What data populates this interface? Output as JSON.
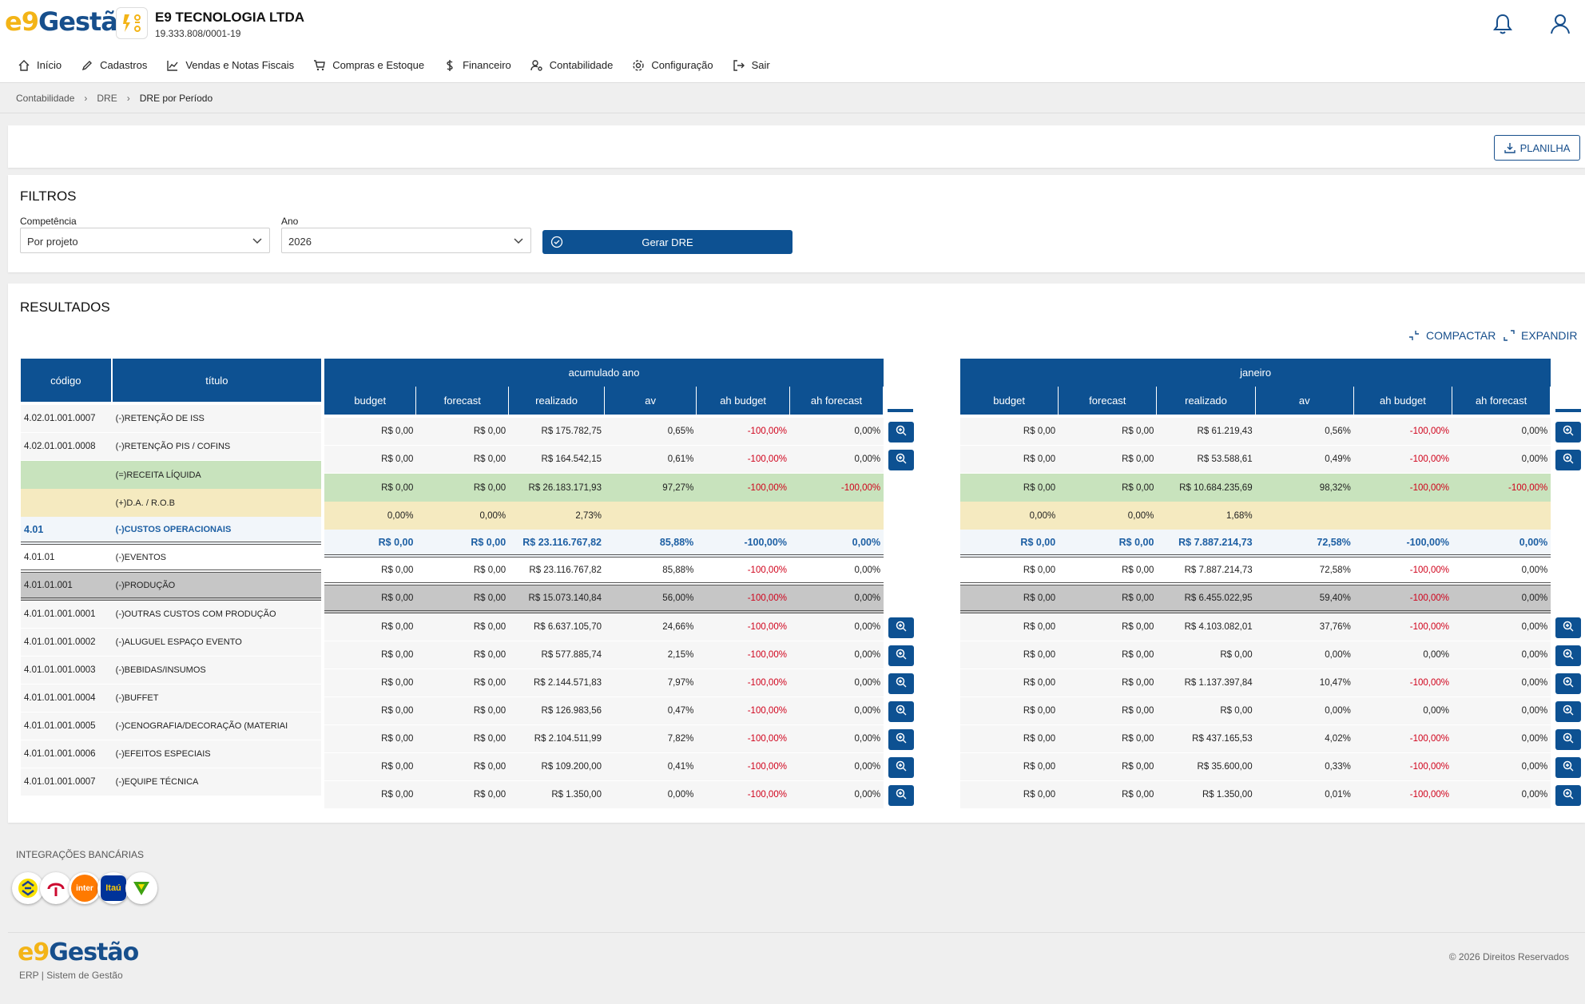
{
  "header": {
    "logo_prefix": "e9",
    "logo_text": "Gestão",
    "company_name": "E9 TECNOLOGIA LTDA",
    "company_cnpj": "19.333.808/0001-19"
  },
  "menu": [
    {
      "label": "Início",
      "icon": "home-icon"
    },
    {
      "label": "Cadastros",
      "icon": "pencil-icon"
    },
    {
      "label": "Vendas e Notas Fiscais",
      "icon": "chart-line-icon"
    },
    {
      "label": "Compras e Estoque",
      "icon": "cart-icon"
    },
    {
      "label": "Financeiro",
      "icon": "dollar-icon"
    },
    {
      "label": "Contabilidade",
      "icon": "user-gear-icon"
    },
    {
      "label": "Configuração",
      "icon": "gear-icon"
    },
    {
      "label": "Sair",
      "icon": "logout-icon"
    }
  ],
  "breadcrumb": [
    "Contabilidade",
    "DRE",
    "DRE por Período"
  ],
  "toolbar": {
    "planilha_label": "PLANILHA"
  },
  "filters": {
    "title": "FILTROS",
    "competencia_label": "Competência",
    "competencia_value": "Por projeto",
    "ano_label": "Ano",
    "ano_value": "2026",
    "gerar_label": "Gerar DRE"
  },
  "results": {
    "title": "RESULTADOS",
    "compactar_label": "COMPACTAR",
    "expandir_label": "EXPANDIR"
  },
  "table": {
    "codigo_header": "código",
    "titulo_header": "título",
    "groups": [
      {
        "label": "acumulado ano"
      },
      {
        "label": "janeiro"
      }
    ],
    "sub_headers": [
      "budget",
      "forecast",
      "realizado",
      "av",
      "ah budget",
      "ah forecast"
    ],
    "rows": [
      {
        "type": "plain",
        "code": "4.02.01.001.0007",
        "title": "(-)RETENÇÃO DE ISS",
        "zoom": true,
        "acc": [
          "R$ 0,00",
          "R$ 0,00",
          "R$ 175.782,75",
          "0,65%",
          "-100,00%",
          "0,00%"
        ],
        "jan": [
          "R$ 0,00",
          "R$ 0,00",
          "R$ 61.219,43",
          "0,56%",
          "-100,00%",
          "0,00%"
        ]
      },
      {
        "type": "plain",
        "code": "4.02.01.001.0008",
        "title": "(-)RETENÇÃO PIS / COFINS",
        "zoom": true,
        "acc": [
          "R$ 0,00",
          "R$ 0,00",
          "R$ 164.542,15",
          "0,61%",
          "-100,00%",
          "0,00%"
        ],
        "jan": [
          "R$ 0,00",
          "R$ 0,00",
          "R$ 53.588,61",
          "0,49%",
          "-100,00%",
          "0,00%"
        ]
      },
      {
        "type": "rl",
        "code": "",
        "title": "(=)RECEITA LÍQUIDA",
        "zoom": false,
        "acc": [
          "R$ 0,00",
          "R$ 0,00",
          "R$ 26.183.171,93",
          "97,27%",
          "-100,00%",
          "-100,00%"
        ],
        "jan": [
          "R$ 0,00",
          "R$ 0,00",
          "R$ 10.684.235,69",
          "98,32%",
          "-100,00%",
          "-100,00%"
        ]
      },
      {
        "type": "rob",
        "code": "",
        "title": "(+)D.A. / R.O.B",
        "zoom": false,
        "acc": [
          "0,00%",
          "0,00%",
          "2,73%",
          "",
          "",
          ""
        ],
        "jan": [
          "0,00%",
          "0,00%",
          "1,68%",
          "",
          "",
          ""
        ]
      },
      {
        "type": "co",
        "code": "4.01",
        "title": "(-)CUSTOS OPERACIONAIS",
        "zoom": false,
        "acc": [
          "R$ 0,00",
          "R$ 0,00",
          "R$ 23.116.767,82",
          "85,88%",
          "-100,00%",
          "0,00%"
        ],
        "jan": [
          "R$ 0,00",
          "R$ 0,00",
          "R$ 7.887.214,73",
          "72,58%",
          "-100,00%",
          "0,00%"
        ]
      },
      {
        "type": "ev",
        "code": "4.01.01",
        "title": "(-)EVENTOS",
        "zoom": false,
        "acc": [
          "R$ 0,00",
          "R$ 0,00",
          "R$ 23.116.767,82",
          "85,88%",
          "-100,00%",
          "0,00%"
        ],
        "jan": [
          "R$ 0,00",
          "R$ 0,00",
          "R$ 7.887.214,73",
          "72,58%",
          "-100,00%",
          "0,00%"
        ]
      },
      {
        "type": "pr",
        "code": "4.01.01.001",
        "title": "(-)PRODUÇÃO",
        "zoom": false,
        "acc": [
          "R$ 0,00",
          "R$ 0,00",
          "R$ 15.073.140,84",
          "56,00%",
          "-100,00%",
          "0,00%"
        ],
        "jan": [
          "R$ 0,00",
          "R$ 0,00",
          "R$ 6.455.022,95",
          "59,40%",
          "-100,00%",
          "0,00%"
        ]
      },
      {
        "type": "plain",
        "code": "4.01.01.001.0001",
        "title": "(-)OUTRAS CUSTOS COM PRODUÇÃO",
        "zoom": true,
        "acc": [
          "R$ 0,00",
          "R$ 0,00",
          "R$ 6.637.105,70",
          "24,66%",
          "-100,00%",
          "0,00%"
        ],
        "jan": [
          "R$ 0,00",
          "R$ 0,00",
          "R$ 4.103.082,01",
          "37,76%",
          "-100,00%",
          "0,00%"
        ]
      },
      {
        "type": "plain",
        "code": "4.01.01.001.0002",
        "title": "(-)ALUGUEL ESPAÇO EVENTO",
        "zoom": true,
        "acc": [
          "R$ 0,00",
          "R$ 0,00",
          "R$ 577.885,74",
          "2,15%",
          "-100,00%",
          "0,00%"
        ],
        "jan": [
          "R$ 0,00",
          "R$ 0,00",
          "R$ 0,00",
          "0,00%",
          "0,00%",
          "0,00%"
        ]
      },
      {
        "type": "plain",
        "code": "4.01.01.001.0003",
        "title": "(-)BEBIDAS/INSUMOS",
        "zoom": true,
        "acc": [
          "R$ 0,00",
          "R$ 0,00",
          "R$ 2.144.571,83",
          "7,97%",
          "-100,00%",
          "0,00%"
        ],
        "jan": [
          "R$ 0,00",
          "R$ 0,00",
          "R$ 1.137.397,84",
          "10,47%",
          "-100,00%",
          "0,00%"
        ]
      },
      {
        "type": "plain",
        "code": "4.01.01.001.0004",
        "title": "(-)BUFFET",
        "zoom": true,
        "acc": [
          "R$ 0,00",
          "R$ 0,00",
          "R$ 126.983,56",
          "0,47%",
          "-100,00%",
          "0,00%"
        ],
        "jan": [
          "R$ 0,00",
          "R$ 0,00",
          "R$ 0,00",
          "0,00%",
          "0,00%",
          "0,00%"
        ]
      },
      {
        "type": "plain",
        "code": "4.01.01.001.0005",
        "title": "(-)CENOGRAFIA/DECORAÇÃO (MATERIAI",
        "zoom": true,
        "acc": [
          "R$ 0,00",
          "R$ 0,00",
          "R$ 2.104.511,99",
          "7,82%",
          "-100,00%",
          "0,00%"
        ],
        "jan": [
          "R$ 0,00",
          "R$ 0,00",
          "R$ 437.165,53",
          "4,02%",
          "-100,00%",
          "0,00%"
        ]
      },
      {
        "type": "plain",
        "code": "4.01.01.001.0006",
        "title": "(-)EFEITOS ESPECIAIS",
        "zoom": true,
        "acc": [
          "R$ 0,00",
          "R$ 0,00",
          "R$ 109.200,00",
          "0,41%",
          "-100,00%",
          "0,00%"
        ],
        "jan": [
          "R$ 0,00",
          "R$ 0,00",
          "R$ 35.600,00",
          "0,33%",
          "-100,00%",
          "0,00%"
        ]
      },
      {
        "type": "plain",
        "code": "4.01.01.001.0007",
        "title": "(-)EQUIPE TÉCNICA",
        "zoom": true,
        "acc": [
          "R$ 0,00",
          "R$ 0,00",
          "R$ 1.350,00",
          "0,00%",
          "-100,00%",
          "0,00%"
        ],
        "jan": [
          "R$ 0,00",
          "R$ 0,00",
          "R$ 1.350,00",
          "0,01%",
          "-100,00%",
          "0,00%"
        ]
      }
    ]
  },
  "integrations": {
    "title": "INTEGRAÇÕES BANCÁRIAS",
    "banks": [
      {
        "name": "banco-do-brasil",
        "text": ""
      },
      {
        "name": "bradesco",
        "text": ""
      },
      {
        "name": "inter",
        "text": "inter"
      },
      {
        "name": "itau",
        "text": "Itaú"
      },
      {
        "name": "sicredi",
        "text": ""
      }
    ]
  },
  "footer": {
    "logo_prefix": "e9",
    "logo_text": "Gestão",
    "subtitle": "ERP | Sistem de Gestão",
    "copyright": "© 2026 Direitos Reservados"
  },
  "colors": {
    "primary": "#0d5192",
    "negative": "#d0021b",
    "receita_liquida_bg": "#c8e3bd",
    "rob_bg": "#f5eac0",
    "producao_bg": "#c6c6c6",
    "accent_yellow": "#f3b417"
  }
}
